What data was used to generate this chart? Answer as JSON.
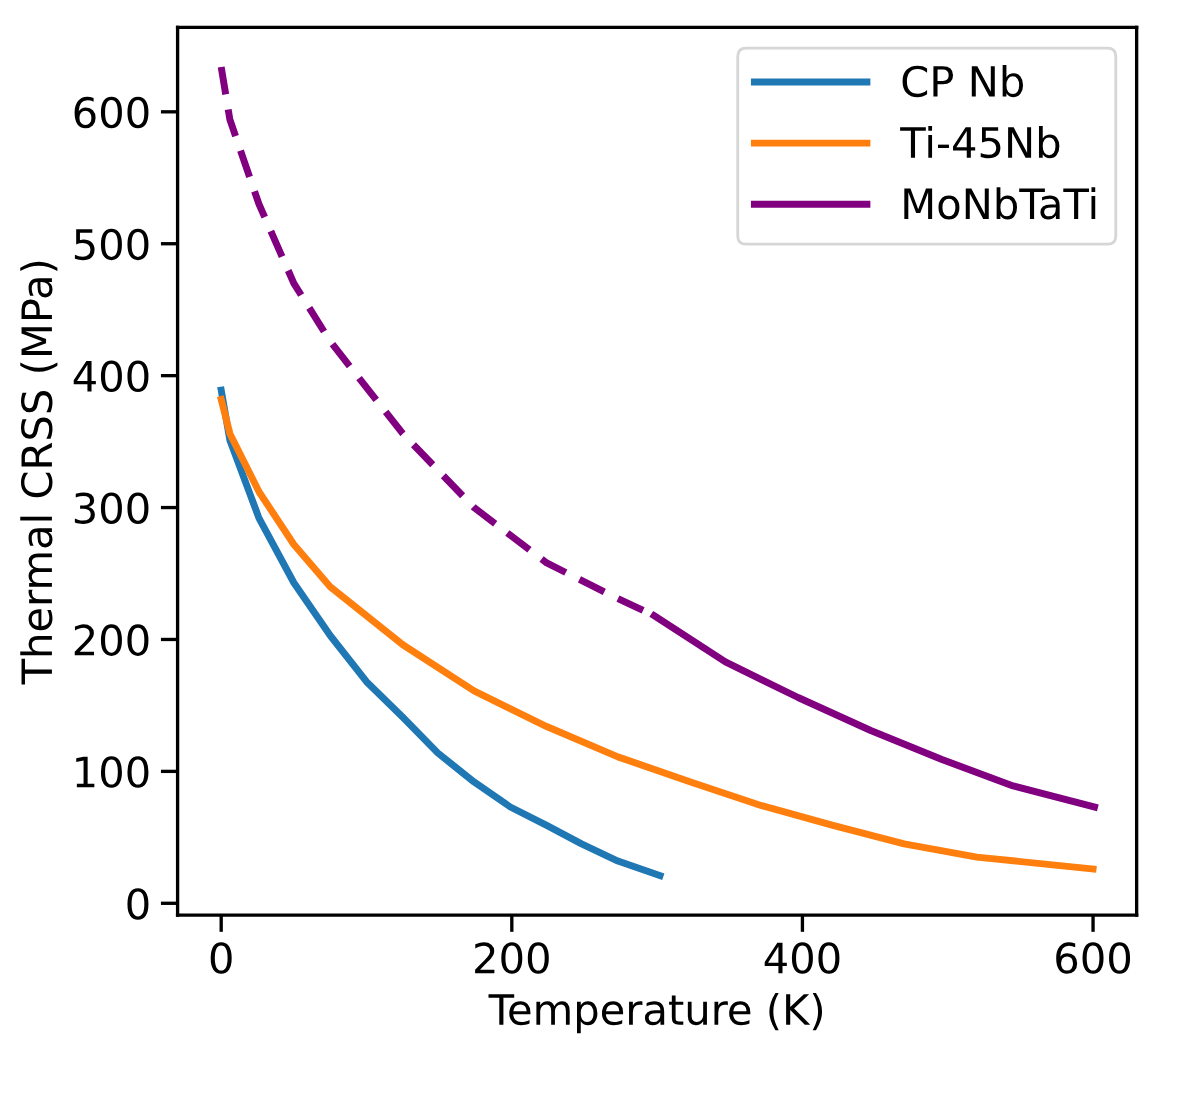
{
  "chart_data": {
    "type": "line",
    "xlabel": "Temperature (K)",
    "ylabel": "Thermal CRSS (MPa)",
    "xlim": [
      -30,
      630
    ],
    "ylim": [
      -9,
      664
    ],
    "xticks": [
      0,
      200,
      400,
      600
    ],
    "yticks": [
      0,
      100,
      200,
      300,
      400,
      500,
      600
    ],
    "grid": false,
    "legend": "top right",
    "marker": "none",
    "series": [
      {
        "name": "CP Nb",
        "color": "#1f77b4",
        "line_style": "solid",
        "x": [
          0,
          6,
          26,
          50,
          75,
          100,
          125,
          149,
          174,
          199,
          224,
          248,
          273,
          302
        ],
        "values": [
          389,
          351,
          292,
          243,
          203,
          168,
          141,
          114,
          92,
          73,
          59,
          45,
          32,
          21
        ]
      },
      {
        "name": "Ti-45Nb",
        "color": "#ff7f0e",
        "line_style": "solid",
        "x": [
          0,
          6,
          26,
          50,
          75,
          125,
          174,
          224,
          273,
          323,
          372,
          421,
          470,
          520,
          600
        ],
        "values": [
          382,
          356,
          312,
          272,
          240,
          196,
          161,
          134,
          111,
          92,
          74,
          59,
          45,
          35,
          26
        ]
      },
      {
        "color": "#800080",
        "line_style": "dashed",
        "x": [
          0,
          6,
          26,
          50,
          75,
          125,
          174,
          224,
          273,
          298
        ],
        "values": [
          634,
          594,
          530,
          470,
          426,
          356,
          300,
          258,
          231,
          218
        ]
      },
      {
        "name": "MoNbTaTi",
        "color": "#800080",
        "line_style": "solid",
        "x": [
          298,
          347,
          397,
          447,
          496,
          545,
          601
        ],
        "values": [
          218,
          183,
          156,
          131,
          109,
          89,
          73
        ]
      }
    ]
  }
}
